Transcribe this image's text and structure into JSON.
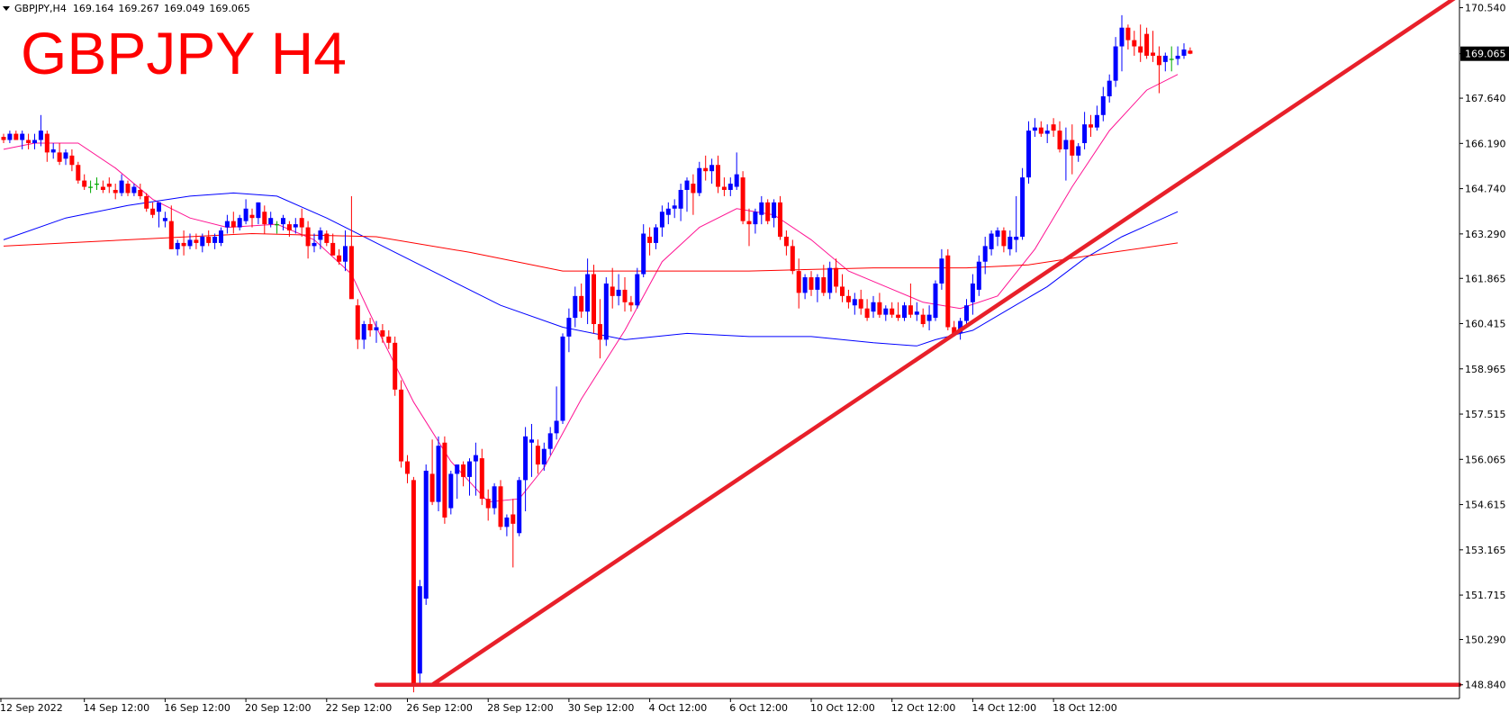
{
  "header": {
    "symbol": "GBPJPY,H4",
    "open": "169.164",
    "high": "169.267",
    "low": "169.049",
    "close": "169.065"
  },
  "title": "GBPJPY H4",
  "last_price_label": "169.065",
  "colors": {
    "bull": "#0000ff",
    "bear": "#ff0000",
    "doji": "#00aa00",
    "ma_fast": "#ff1493",
    "ma_mid": "#0000ff",
    "ma_slow": "#ff0000",
    "trendline": "#e8202a",
    "axis": "#000000",
    "price_tag_bg": "#000000",
    "price_tag_fg": "#ffffff"
  },
  "chart_data": {
    "type": "candlestick",
    "ylim": [
      148.4,
      170.7
    ],
    "y_ticks": [
      "170.540",
      "169.065",
      "167.640",
      "166.190",
      "164.740",
      "163.290",
      "161.865",
      "160.415",
      "158.965",
      "157.515",
      "156.065",
      "154.615",
      "153.165",
      "151.715",
      "150.290",
      "148.840"
    ],
    "x_ticks": [
      "12 Sep 2022",
      "14 Sep 12:00",
      "16 Sep 12:00",
      "20 Sep 12:00",
      "22 Sep 12:00",
      "26 Sep 12:00",
      "28 Sep 12:00",
      "30 Sep 12:00",
      "4 Oct 12:00",
      "6 Oct 12:00",
      "10 Oct 12:00",
      "12 Oct 12:00",
      "14 Oct 12:00",
      "18 Oct 12:00"
    ],
    "candles": [
      [
        166.4,
        166.5,
        166.2,
        166.3
      ],
      [
        166.3,
        166.6,
        166.2,
        166.5
      ],
      [
        166.5,
        166.6,
        166.3,
        166.3
      ],
      [
        166.3,
        166.6,
        166.0,
        166.5
      ],
      [
        166.3,
        166.5,
        166.0,
        166.2
      ],
      [
        166.2,
        166.5,
        166.0,
        166.3
      ],
      [
        166.3,
        167.1,
        166.1,
        166.6
      ],
      [
        166.5,
        166.6,
        165.6,
        165.9
      ],
      [
        165.9,
        166.2,
        165.7,
        166.0
      ],
      [
        165.9,
        166.2,
        165.5,
        165.6
      ],
      [
        165.7,
        166.0,
        165.5,
        165.9
      ],
      [
        165.8,
        166.0,
        165.3,
        165.5
      ],
      [
        165.5,
        165.6,
        164.9,
        165.0
      ],
      [
        165.0,
        165.2,
        164.7,
        164.8
      ],
      [
        164.8,
        165.0,
        164.6,
        164.8
      ],
      [
        164.9,
        165.1,
        164.7,
        164.9
      ],
      [
        164.8,
        165.0,
        164.6,
        164.7
      ],
      [
        164.9,
        165.1,
        164.6,
        164.8
      ],
      [
        164.7,
        164.9,
        164.4,
        164.6
      ],
      [
        164.6,
        165.2,
        164.5,
        165.0
      ],
      [
        164.9,
        165.0,
        164.5,
        164.6
      ],
      [
        164.6,
        164.9,
        164.5,
        164.8
      ],
      [
        164.7,
        164.9,
        164.4,
        164.5
      ],
      [
        164.5,
        164.6,
        164.0,
        164.1
      ],
      [
        164.1,
        164.3,
        163.8,
        163.9
      ],
      [
        164.0,
        164.3,
        163.5,
        164.3
      ],
      [
        163.7,
        164.0,
        163.5,
        163.8
      ],
      [
        163.7,
        164.2,
        162.8,
        162.8
      ],
      [
        162.8,
        163.1,
        162.6,
        163.0
      ],
      [
        163.0,
        163.4,
        162.6,
        162.9
      ],
      [
        162.9,
        163.3,
        162.8,
        163.1
      ],
      [
        163.1,
        163.3,
        162.8,
        163.0
      ],
      [
        162.9,
        163.3,
        162.7,
        163.2
      ],
      [
        163.2,
        163.4,
        162.9,
        163.0
      ],
      [
        163.0,
        163.3,
        162.8,
        163.2
      ],
      [
        163.0,
        163.5,
        162.9,
        163.4
      ],
      [
        163.5,
        163.9,
        163.3,
        163.7
      ],
      [
        163.7,
        164.0,
        163.3,
        163.5
      ],
      [
        163.5,
        163.9,
        163.4,
        163.8
      ],
      [
        163.7,
        164.4,
        163.6,
        164.1
      ],
      [
        163.9,
        164.1,
        163.5,
        163.8
      ],
      [
        163.8,
        164.3,
        163.6,
        164.3
      ],
      [
        164.0,
        164.2,
        163.3,
        163.6
      ],
      [
        163.6,
        164.0,
        163.5,
        163.8
      ],
      [
        163.6,
        163.7,
        163.3,
        163.6
      ],
      [
        163.6,
        163.9,
        163.4,
        163.8
      ],
      [
        163.6,
        163.7,
        163.2,
        163.4
      ],
      [
        163.5,
        163.8,
        163.3,
        163.6
      ],
      [
        163.8,
        164.1,
        163.2,
        163.5
      ],
      [
        163.5,
        163.7,
        162.5,
        162.9
      ],
      [
        162.9,
        163.3,
        162.7,
        163.0
      ],
      [
        163.1,
        163.5,
        162.8,
        163.4
      ],
      [
        163.3,
        163.4,
        162.9,
        163.0
      ],
      [
        163.0,
        163.3,
        162.6,
        162.6
      ],
      [
        162.6,
        162.8,
        162.3,
        162.4
      ],
      [
        162.4,
        163.4,
        162.1,
        162.9
      ],
      [
        162.9,
        164.5,
        161.4,
        161.2
      ],
      [
        161.0,
        161.2,
        159.6,
        159.9
      ],
      [
        159.9,
        160.5,
        159.6,
        160.4
      ],
      [
        160.4,
        160.6,
        160.0,
        160.2
      ],
      [
        160.2,
        160.5,
        159.8,
        160.3
      ],
      [
        160.2,
        160.4,
        159.8,
        160.0
      ],
      [
        160.0,
        160.2,
        159.6,
        159.8
      ],
      [
        159.8,
        160.0,
        158.1,
        158.3
      ],
      [
        158.3,
        158.6,
        155.8,
        156.0
      ],
      [
        156.0,
        156.2,
        155.3,
        155.6
      ],
      [
        155.4,
        155.5,
        148.6,
        148.9
      ],
      [
        149.2,
        152.2,
        148.9,
        152.0
      ],
      [
        151.6,
        155.9,
        151.4,
        155.7
      ],
      [
        155.6,
        156.7,
        154.6,
        154.7
      ],
      [
        154.7,
        156.8,
        154.4,
        156.5
      ],
      [
        156.6,
        156.8,
        154.0,
        154.2
      ],
      [
        154.5,
        155.7,
        154.3,
        155.6
      ],
      [
        155.6,
        155.9,
        154.8,
        155.9
      ],
      [
        155.9,
        156.0,
        155.2,
        155.5
      ],
      [
        155.5,
        156.1,
        154.9,
        156.0
      ],
      [
        156.0,
        156.6,
        154.9,
        156.2
      ],
      [
        156.1,
        156.4,
        154.6,
        154.8
      ],
      [
        154.8,
        155.1,
        154.1,
        154.5
      ],
      [
        154.5,
        155.3,
        154.3,
        155.2
      ],
      [
        155.2,
        155.4,
        153.8,
        153.9
      ],
      [
        153.9,
        154.3,
        153.6,
        154.2
      ],
      [
        154.3,
        154.8,
        152.6,
        154.0
      ],
      [
        153.7,
        155.5,
        153.6,
        155.4
      ],
      [
        155.4,
        157.1,
        154.4,
        156.8
      ],
      [
        156.6,
        157.2,
        155.5,
        156.7
      ],
      [
        156.5,
        156.7,
        155.6,
        155.9
      ],
      [
        155.9,
        156.6,
        155.7,
        156.4
      ],
      [
        156.4,
        157.1,
        156.2,
        156.9
      ],
      [
        156.9,
        158.4,
        156.7,
        157.3
      ],
      [
        157.3,
        160.1,
        157.2,
        160.0
      ],
      [
        160.0,
        160.9,
        159.5,
        160.6
      ],
      [
        160.6,
        161.6,
        160.3,
        161.3
      ],
      [
        161.3,
        161.7,
        160.6,
        160.8
      ],
      [
        160.8,
        162.5,
        160.4,
        162.0
      ],
      [
        162.0,
        162.3,
        160.1,
        160.4
      ],
      [
        160.4,
        161.2,
        159.3,
        159.9
      ],
      [
        159.9,
        161.9,
        159.7,
        161.7
      ],
      [
        161.6,
        162.2,
        160.9,
        161.3
      ],
      [
        161.3,
        162.0,
        161.0,
        161.5
      ],
      [
        161.5,
        161.9,
        160.8,
        161.1
      ],
      [
        161.1,
        161.3,
        160.8,
        161.0
      ],
      [
        161.0,
        162.2,
        160.9,
        162.0
      ],
      [
        162.0,
        163.6,
        161.9,
        163.3
      ],
      [
        163.2,
        163.5,
        162.6,
        163.0
      ],
      [
        163.0,
        163.6,
        162.8,
        163.5
      ],
      [
        163.5,
        164.2,
        163.2,
        164.0
      ],
      [
        163.9,
        164.3,
        163.6,
        164.1
      ],
      [
        164.1,
        164.4,
        163.8,
        164.2
      ],
      [
        164.1,
        164.9,
        163.7,
        164.7
      ],
      [
        164.7,
        165.1,
        164.0,
        165.0
      ],
      [
        164.9,
        165.2,
        163.9,
        164.6
      ],
      [
        164.6,
        165.6,
        164.5,
        165.4
      ],
      [
        165.4,
        165.8,
        165.0,
        165.3
      ],
      [
        165.3,
        165.7,
        164.9,
        165.5
      ],
      [
        165.5,
        165.8,
        164.6,
        164.8
      ],
      [
        164.8,
        165.1,
        164.5,
        164.7
      ],
      [
        164.7,
        165.1,
        164.5,
        164.9
      ],
      [
        164.8,
        165.9,
        164.7,
        165.2
      ],
      [
        165.1,
        165.3,
        163.6,
        163.7
      ],
      [
        163.7,
        164.1,
        162.9,
        163.6
      ],
      [
        163.6,
        164.1,
        163.3,
        164.0
      ],
      [
        163.9,
        164.5,
        163.6,
        164.3
      ],
      [
        164.3,
        164.4,
        163.6,
        163.7
      ],
      [
        163.8,
        164.4,
        163.5,
        164.3
      ],
      [
        164.3,
        164.5,
        163.1,
        163.2
      ],
      [
        163.2,
        163.4,
        162.6,
        162.9
      ],
      [
        162.9,
        163.1,
        162.0,
        162.1
      ],
      [
        162.1,
        162.5,
        160.9,
        161.4
      ],
      [
        161.4,
        162.0,
        161.2,
        161.9
      ],
      [
        161.9,
        162.1,
        161.3,
        161.5
      ],
      [
        161.5,
        162.0,
        161.1,
        161.9
      ],
      [
        161.9,
        162.3,
        161.3,
        161.4
      ],
      [
        161.4,
        162.4,
        161.2,
        162.2
      ],
      [
        162.2,
        162.5,
        161.4,
        161.6
      ],
      [
        161.6,
        162.0,
        161.1,
        161.3
      ],
      [
        161.3,
        161.5,
        160.9,
        161.1
      ],
      [
        161.0,
        161.4,
        160.7,
        161.2
      ],
      [
        161.2,
        161.5,
        160.7,
        160.9
      ],
      [
        160.9,
        161.2,
        160.5,
        160.6
      ],
      [
        160.8,
        161.3,
        160.6,
        161.1
      ],
      [
        161.1,
        161.4,
        160.6,
        160.7
      ],
      [
        160.7,
        161.0,
        160.5,
        160.9
      ],
      [
        160.9,
        161.1,
        160.6,
        160.7
      ],
      [
        160.7,
        161.1,
        160.5,
        160.6
      ],
      [
        160.6,
        161.1,
        160.5,
        161.0
      ],
      [
        161.0,
        161.7,
        160.6,
        160.7
      ],
      [
        160.7,
        161.1,
        160.5,
        160.8
      ],
      [
        160.7,
        160.9,
        160.3,
        160.4
      ],
      [
        160.5,
        161.0,
        160.2,
        160.7
      ],
      [
        160.6,
        161.8,
        160.5,
        161.7
      ],
      [
        161.7,
        162.8,
        161.5,
        162.5
      ],
      [
        162.6,
        162.8,
        160.2,
        160.3
      ],
      [
        160.3,
        160.5,
        160.0,
        160.1
      ],
      [
        160.1,
        160.6,
        159.9,
        160.5
      ],
      [
        160.5,
        161.2,
        160.3,
        161.0
      ],
      [
        161.1,
        162.0,
        160.7,
        161.7
      ],
      [
        161.5,
        162.6,
        161.3,
        162.4
      ],
      [
        162.4,
        163.2,
        162.0,
        162.9
      ],
      [
        162.8,
        163.4,
        162.6,
        163.3
      ],
      [
        163.2,
        163.5,
        162.9,
        163.4
      ],
      [
        163.4,
        163.5,
        162.7,
        162.9
      ],
      [
        162.8,
        163.4,
        162.6,
        163.2
      ],
      [
        163.1,
        164.5,
        162.7,
        163.2
      ],
      [
        163.2,
        165.4,
        163.1,
        165.1
      ],
      [
        165.1,
        166.9,
        164.9,
        166.6
      ],
      [
        166.6,
        167.0,
        166.4,
        166.7
      ],
      [
        166.7,
        166.9,
        166.4,
        166.5
      ],
      [
        166.5,
        166.8,
        166.2,
        166.6
      ],
      [
        166.8,
        167.0,
        166.4,
        166.6
      ],
      [
        166.6,
        166.9,
        165.9,
        166.0
      ],
      [
        166.0,
        166.7,
        165.0,
        166.3
      ],
      [
        166.3,
        166.8,
        165.2,
        165.8
      ],
      [
        165.8,
        166.2,
        165.6,
        166.1
      ],
      [
        166.2,
        167.2,
        166.0,
        166.8
      ],
      [
        166.8,
        167.1,
        166.4,
        166.7
      ],
      [
        166.7,
        167.4,
        166.6,
        167.1
      ],
      [
        167.1,
        168.0,
        166.9,
        167.7
      ],
      [
        167.7,
        168.4,
        167.5,
        168.2
      ],
      [
        168.2,
        169.6,
        168.0,
        169.3
      ],
      [
        169.3,
        170.3,
        168.5,
        169.9
      ],
      [
        169.9,
        170.0,
        169.2,
        169.5
      ],
      [
        169.5,
        169.8,
        169.0,
        169.3
      ],
      [
        169.3,
        170.0,
        168.8,
        169.1
      ],
      [
        169.7,
        169.9,
        168.9,
        169.0
      ],
      [
        169.1,
        169.8,
        168.8,
        169.0
      ],
      [
        169.0,
        169.3,
        167.8,
        168.7
      ],
      [
        168.8,
        169.1,
        168.5,
        169.0
      ],
      [
        168.9,
        169.3,
        168.5,
        168.9
      ],
      [
        168.9,
        169.3,
        168.7,
        169.0
      ],
      [
        169.0,
        169.4,
        168.9,
        169.2
      ],
      [
        169.164,
        169.267,
        169.049,
        169.065
      ]
    ],
    "ma_fast": [
      [
        0,
        166.0
      ],
      [
        5,
        166.2
      ],
      [
        12,
        166.2
      ],
      [
        18,
        165.4
      ],
      [
        24,
        164.4
      ],
      [
        30,
        163.8
      ],
      [
        36,
        163.5
      ],
      [
        44,
        163.6
      ],
      [
        50,
        163.1
      ],
      [
        56,
        162.0
      ],
      [
        60,
        160.3
      ],
      [
        66,
        157.9
      ],
      [
        72,
        156.0
      ],
      [
        78,
        154.7
      ],
      [
        83,
        154.8
      ],
      [
        87,
        155.8
      ],
      [
        93,
        158.0
      ],
      [
        100,
        160.2
      ],
      [
        106,
        162.4
      ],
      [
        112,
        163.5
      ],
      [
        118,
        164.1
      ],
      [
        124,
        163.9
      ],
      [
        130,
        163.1
      ],
      [
        136,
        162.1
      ],
      [
        142,
        161.6
      ],
      [
        148,
        161.1
      ],
      [
        154,
        160.9
      ],
      [
        160,
        161.3
      ],
      [
        166,
        162.8
      ],
      [
        172,
        164.8
      ],
      [
        178,
        166.6
      ],
      [
        184,
        167.9
      ],
      [
        189,
        168.4
      ]
    ],
    "ma_mid": [
      [
        0,
        163.1
      ],
      [
        10,
        163.8
      ],
      [
        20,
        164.2
      ],
      [
        30,
        164.5
      ],
      [
        37,
        164.6
      ],
      [
        44,
        164.5
      ],
      [
        52,
        163.8
      ],
      [
        60,
        163.0
      ],
      [
        70,
        162.0
      ],
      [
        80,
        161.0
      ],
      [
        90,
        160.3
      ],
      [
        100,
        159.9
      ],
      [
        110,
        160.1
      ],
      [
        120,
        160.0
      ],
      [
        130,
        160.0
      ],
      [
        140,
        159.8
      ],
      [
        147,
        159.7
      ],
      [
        150,
        159.9
      ],
      [
        156,
        160.2
      ],
      [
        162,
        160.9
      ],
      [
        168,
        161.6
      ],
      [
        174,
        162.5
      ],
      [
        180,
        163.2
      ],
      [
        189,
        164.0
      ]
    ],
    "ma_slow": [
      [
        0,
        162.9
      ],
      [
        20,
        163.1
      ],
      [
        40,
        163.3
      ],
      [
        60,
        163.2
      ],
      [
        75,
        162.7
      ],
      [
        90,
        162.1
      ],
      [
        105,
        162.1
      ],
      [
        120,
        162.1
      ],
      [
        140,
        162.2
      ],
      [
        155,
        162.2
      ],
      [
        165,
        162.3
      ],
      [
        175,
        162.6
      ],
      [
        189,
        163.0
      ]
    ],
    "trendlines": [
      {
        "from": [
          69,
          148.84
        ],
        "to": [
          240,
          170.95
        ]
      },
      {
        "from": [
          60,
          148.84
        ],
        "to": [
          240,
          148.84
        ]
      }
    ]
  }
}
